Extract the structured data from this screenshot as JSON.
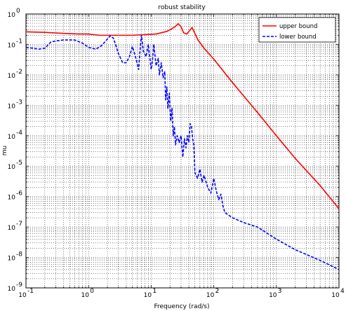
{
  "chart_data": {
    "type": "line",
    "title": "robust stability",
    "xlabel": "Frequency (rad/s)",
    "ylabel": "mu",
    "x_scale": "log",
    "y_scale": "log",
    "xlim": [
      0.1,
      10000
    ],
    "ylim": [
      1e-09,
      1
    ],
    "x_ticks": [
      {
        "value": 0.1,
        "base": "10",
        "exp": "-1"
      },
      {
        "value": 1,
        "base": "10",
        "exp": "0"
      },
      {
        "value": 10,
        "base": "10",
        "exp": "1"
      },
      {
        "value": 100,
        "base": "10",
        "exp": "2"
      },
      {
        "value": 1000,
        "base": "10",
        "exp": "3"
      },
      {
        "value": 10000,
        "base": "10",
        "exp": "4"
      }
    ],
    "y_ticks": [
      {
        "value": 1,
        "base": "10",
        "exp": "0"
      },
      {
        "value": 0.1,
        "base": "10",
        "exp": "-1"
      },
      {
        "value": 0.01,
        "base": "10",
        "exp": "-2"
      },
      {
        "value": 0.001,
        "base": "10",
        "exp": "-3"
      },
      {
        "value": 0.0001,
        "base": "10",
        "exp": "-4"
      },
      {
        "value": 1e-05,
        "base": "10",
        "exp": "-5"
      },
      {
        "value": 1e-06,
        "base": "10",
        "exp": "-6"
      },
      {
        "value": 1e-07,
        "base": "10",
        "exp": "-7"
      },
      {
        "value": 1e-08,
        "base": "10",
        "exp": "-8"
      },
      {
        "value": 1e-09,
        "base": "10",
        "exp": "-9"
      }
    ],
    "grid": true,
    "legend_position": "top-right",
    "series": [
      {
        "name": "upper bound",
        "color": "#ff0000",
        "line_style": "solid",
        "points": [
          [
            0.1,
            0.26
          ],
          [
            0.2,
            0.25
          ],
          [
            0.4,
            0.23
          ],
          [
            0.7,
            0.22
          ],
          [
            1.0,
            0.22
          ],
          [
            1.5,
            0.2
          ],
          [
            2.0,
            0.2
          ],
          [
            3.0,
            0.2
          ],
          [
            5.0,
            0.2
          ],
          [
            8.0,
            0.21
          ],
          [
            12,
            0.22
          ],
          [
            18,
            0.27
          ],
          [
            24,
            0.38
          ],
          [
            27,
            0.48
          ],
          [
            30,
            0.38
          ],
          [
            33,
            0.24
          ],
          [
            37,
            0.22
          ],
          [
            42,
            0.3
          ],
          [
            45,
            0.36
          ],
          [
            49,
            0.25
          ],
          [
            56,
            0.14
          ],
          [
            70,
            0.075
          ],
          [
            100,
            0.033
          ],
          [
            200,
            0.0055
          ],
          [
            500,
            0.00058
          ],
          [
            1000,
            0.0001
          ],
          [
            2000,
            1.8e-05
          ],
          [
            5000,
            2.3e-06
          ],
          [
            10000,
            4e-07
          ]
        ]
      },
      {
        "name": "lower bound",
        "color": "#0000ff",
        "line_style": "dashed",
        "points": [
          [
            0.1,
            0.08
          ],
          [
            0.13,
            0.075
          ],
          [
            0.16,
            0.07
          ],
          [
            0.2,
            0.075
          ],
          [
            0.25,
            0.12
          ],
          [
            0.3,
            0.13
          ],
          [
            0.4,
            0.14
          ],
          [
            0.6,
            0.14
          ],
          [
            0.8,
            0.11
          ],
          [
            1.0,
            0.08
          ],
          [
            1.3,
            0.07
          ],
          [
            1.6,
            0.09
          ],
          [
            2.0,
            0.15
          ],
          [
            2.2,
            0.19
          ],
          [
            2.5,
            0.16
          ],
          [
            3.0,
            0.05
          ],
          [
            3.5,
            0.025
          ],
          [
            4.0,
            0.025
          ],
          [
            4.5,
            0.04
          ],
          [
            5.0,
            0.085
          ],
          [
            5.3,
            0.06
          ],
          [
            5.8,
            0.03
          ],
          [
            6.3,
            0.015
          ],
          [
            6.8,
            0.12
          ],
          [
            7.0,
            0.2
          ],
          [
            7.5,
            0.06
          ],
          [
            8.3,
            0.04
          ],
          [
            9.0,
            0.1
          ],
          [
            10.0,
            0.015
          ],
          [
            10.5,
            0.03
          ],
          [
            11.0,
            0.1
          ],
          [
            12.0,
            0.02
          ],
          [
            13.0,
            0.035
          ],
          [
            13.5,
            0.01
          ],
          [
            14.5,
            0.025
          ],
          [
            15.5,
            0.008
          ],
          [
            16.5,
            0.013
          ],
          [
            17.0,
            0.0015
          ],
          [
            17.8,
            0.004
          ],
          [
            18.5,
            0.0008
          ],
          [
            19.5,
            0.0025
          ],
          [
            20.5,
            0.0003
          ],
          [
            21.5,
            0.0008
          ],
          [
            22.5,
            0.0001
          ],
          [
            23.5,
            0.0002
          ],
          [
            24.5,
            5e-05
          ],
          [
            26.0,
            0.0001
          ],
          [
            28.0,
            6e-05
          ],
          [
            30.0,
            0.0001
          ],
          [
            32.0,
            2e-05
          ],
          [
            34.0,
            8e-05
          ],
          [
            36.0,
            4e-05
          ],
          [
            38.0,
            0.0001
          ],
          [
            40.0,
            6e-05
          ],
          [
            42.0,
            0.00025
          ],
          [
            44.0,
            0.0002
          ],
          [
            46.0,
            8e-05
          ],
          [
            48.0,
            5e-05
          ],
          [
            50.0,
            6e-06
          ],
          [
            55.0,
            4e-06
          ],
          [
            60.0,
            8e-06
          ],
          [
            65.0,
            3e-06
          ],
          [
            70.0,
            5e-06
          ],
          [
            80.0,
            2e-06
          ],
          [
            90.0,
            1.3e-06
          ],
          [
            100.0,
            4e-06
          ],
          [
            110.0,
            1.5e-06
          ],
          [
            120.0,
            8e-07
          ],
          [
            130.0,
            1.2e-06
          ],
          [
            140.0,
            5e-07
          ],
          [
            150.0,
            3e-07
          ],
          [
            200.0,
            2e-07
          ],
          [
            300.0,
            1.4e-07
          ],
          [
            500.0,
            1e-07
          ],
          [
            1000.0,
            4e-08
          ],
          [
            2000.0,
            1.8e-08
          ],
          [
            5000.0,
            8e-09
          ],
          [
            10000.0,
            4e-09
          ]
        ]
      }
    ]
  }
}
